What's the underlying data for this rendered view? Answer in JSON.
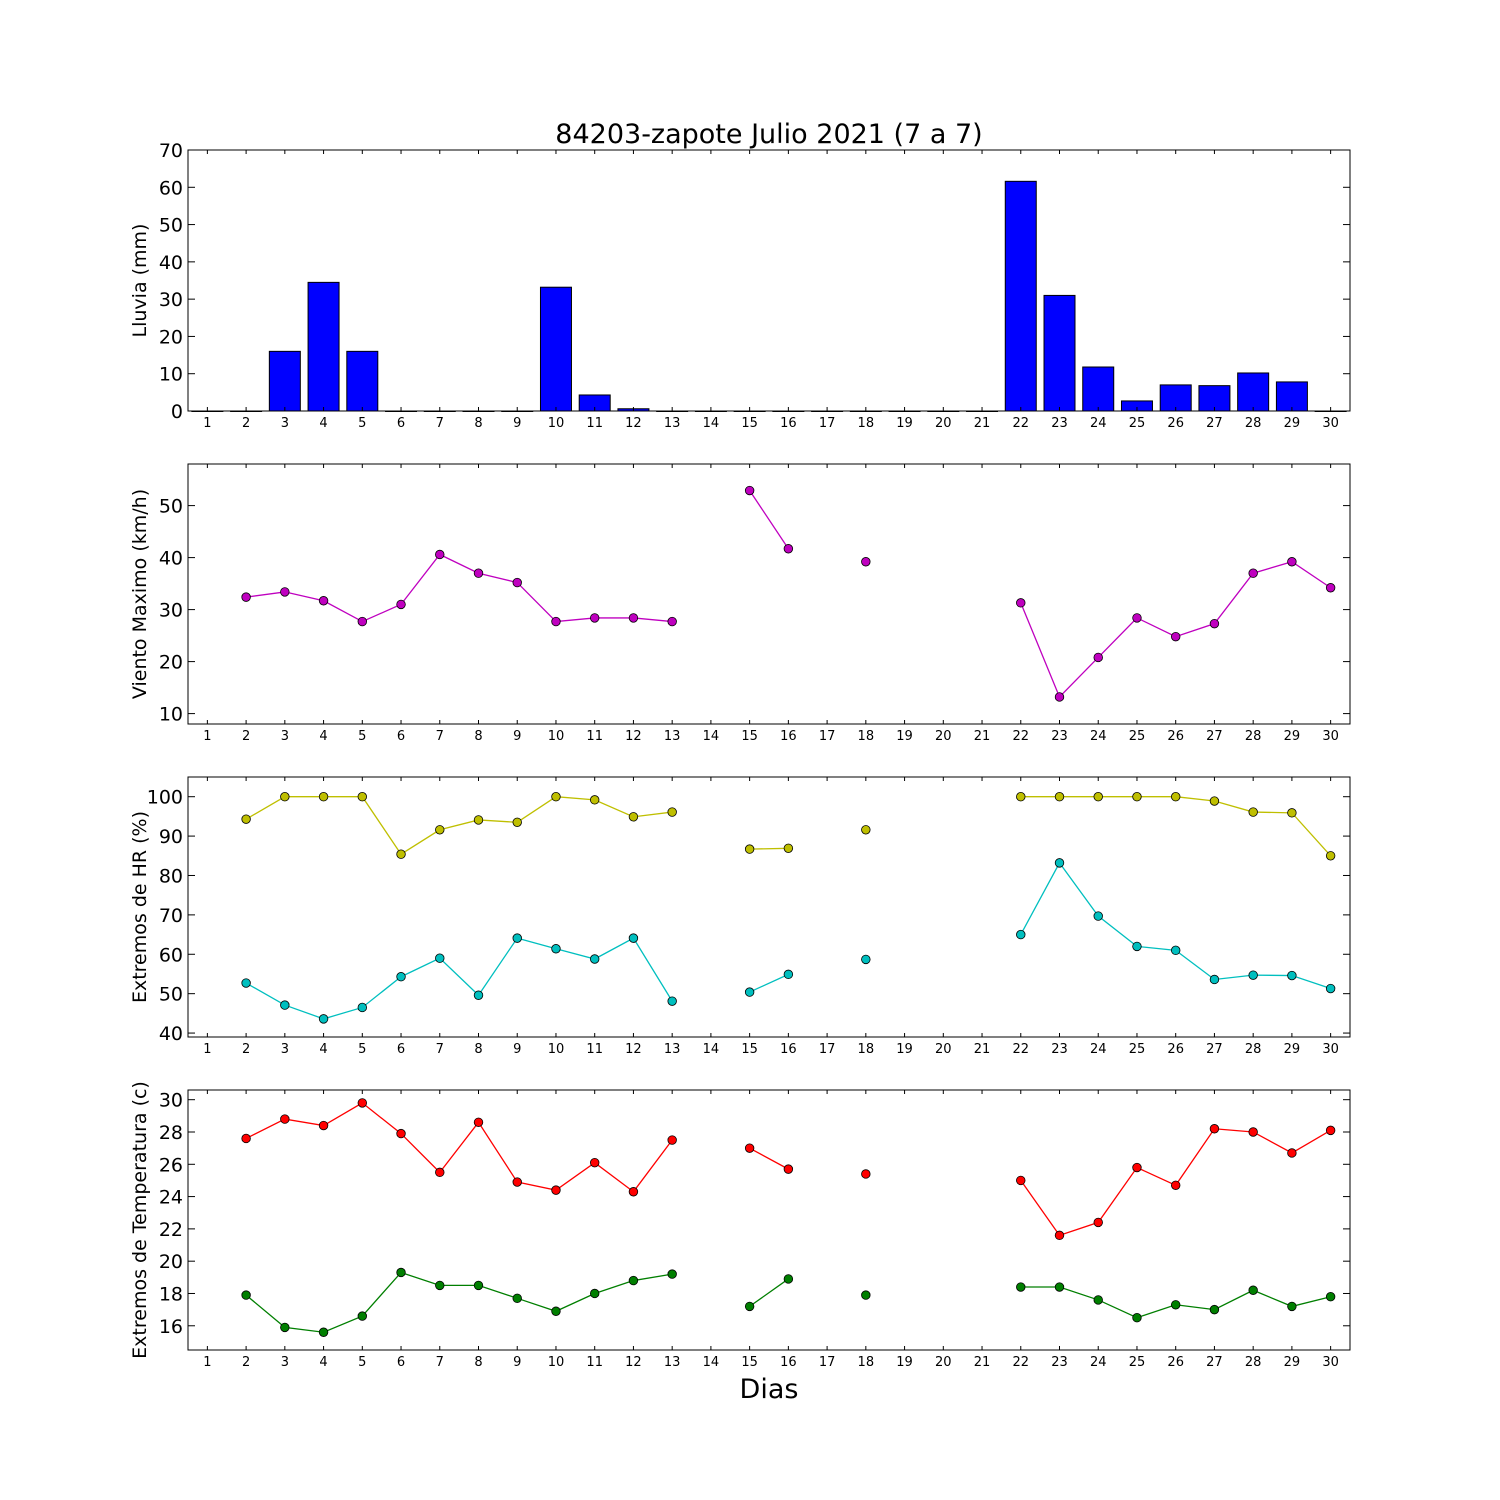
{
  "figure": {
    "title": "84203-zapote Julio 2021  (7 a 7)",
    "xlabel": "Dias"
  },
  "chart_data": [
    {
      "type": "bar",
      "ylabel": "Lluvia (mm)",
      "x": [
        1,
        2,
        3,
        4,
        5,
        6,
        7,
        8,
        9,
        10,
        11,
        12,
        13,
        14,
        15,
        16,
        17,
        18,
        19,
        20,
        21,
        22,
        23,
        24,
        25,
        26,
        27,
        28,
        29,
        30
      ],
      "xlim": [
        0.5,
        30.5
      ],
      "ylim": [
        0,
        70
      ],
      "yticks": [
        0,
        10,
        20,
        30,
        40,
        50,
        60,
        70
      ],
      "series": [
        {
          "color": "#0000ff",
          "values": [
            0,
            0,
            16,
            34.5,
            16,
            0,
            0,
            0,
            0,
            33.2,
            4.3,
            0.6,
            0,
            0,
            0,
            0,
            0,
            0,
            0,
            0,
            0,
            61.6,
            31,
            11.8,
            2.7,
            7,
            6.8,
            10.2,
            7.8,
            0
          ]
        }
      ],
      "grid": false
    },
    {
      "type": "line",
      "ylabel": "Viento Maximo (km/h)",
      "x": [
        1,
        2,
        3,
        4,
        5,
        6,
        7,
        8,
        9,
        10,
        11,
        12,
        13,
        14,
        15,
        16,
        17,
        18,
        19,
        20,
        21,
        22,
        23,
        24,
        25,
        26,
        27,
        28,
        29,
        30
      ],
      "xlim": [
        0.5,
        30.5
      ],
      "ylim": [
        8,
        58
      ],
      "yticks": [
        10,
        20,
        30,
        40,
        50
      ],
      "series": [
        {
          "color": "#bf00bf",
          "values": [
            null,
            32.4,
            33.4,
            31.7,
            27.7,
            31,
            40.6,
            37,
            35.2,
            27.7,
            28.4,
            28.4,
            27.7,
            null,
            52.9,
            41.7,
            null,
            39.2,
            null,
            null,
            null,
            31.3,
            13.2,
            20.8,
            28.4,
            24.8,
            27.3,
            37,
            39.2,
            34.2
          ]
        }
      ],
      "grid": false
    },
    {
      "type": "line",
      "ylabel": "Extremos de HR (%)",
      "x": [
        1,
        2,
        3,
        4,
        5,
        6,
        7,
        8,
        9,
        10,
        11,
        12,
        13,
        14,
        15,
        16,
        17,
        18,
        19,
        20,
        21,
        22,
        23,
        24,
        25,
        26,
        27,
        28,
        29,
        30
      ],
      "xlim": [
        0.5,
        30.5
      ],
      "ylim": [
        39,
        105
      ],
      "yticks": [
        40,
        50,
        60,
        70,
        80,
        90,
        100
      ],
      "series": [
        {
          "color": "#bfbf00",
          "values": [
            null,
            94.3,
            100,
            100,
            100,
            85.4,
            91.6,
            94.1,
            93.5,
            100,
            99.2,
            94.9,
            96.1,
            null,
            86.7,
            86.9,
            null,
            91.6,
            null,
            null,
            null,
            100,
            100,
            100,
            100,
            100,
            98.9,
            96.1,
            95.9,
            85
          ]
        },
        {
          "color": "#00bfbf",
          "values": [
            null,
            52.7,
            47.1,
            43.6,
            46.5,
            54.3,
            59,
            49.6,
            64.1,
            61.4,
            58.8,
            64.1,
            48.1,
            null,
            50.4,
            54.9,
            null,
            58.7,
            null,
            null,
            null,
            65,
            83.2,
            69.7,
            62,
            61,
            53.6,
            54.7,
            54.6,
            51.3
          ]
        }
      ],
      "grid": false
    },
    {
      "type": "line",
      "ylabel": "Extremos de Temperatura (c)",
      "x": [
        1,
        2,
        3,
        4,
        5,
        6,
        7,
        8,
        9,
        10,
        11,
        12,
        13,
        14,
        15,
        16,
        17,
        18,
        19,
        20,
        21,
        22,
        23,
        24,
        25,
        26,
        27,
        28,
        29,
        30
      ],
      "xlim": [
        0.5,
        30.5
      ],
      "ylim": [
        14.5,
        30.6
      ],
      "yticks": [
        16,
        18,
        20,
        22,
        24,
        26,
        28,
        30
      ],
      "series": [
        {
          "color": "#ff0000",
          "values": [
            null,
            27.6,
            28.8,
            28.4,
            29.8,
            27.9,
            25.5,
            28.6,
            24.9,
            24.4,
            26.1,
            24.3,
            27.5,
            null,
            27,
            25.7,
            null,
            25.4,
            null,
            null,
            null,
            25,
            21.6,
            22.4,
            25.8,
            24.7,
            28.2,
            28,
            26.7,
            28.1
          ]
        },
        {
          "color": "#007f00",
          "values": [
            null,
            17.9,
            15.9,
            15.6,
            16.6,
            19.3,
            18.5,
            18.5,
            17.7,
            16.9,
            18,
            18.8,
            19.2,
            null,
            17.2,
            18.9,
            null,
            17.9,
            null,
            null,
            null,
            18.4,
            18.4,
            17.6,
            16.5,
            17.3,
            17,
            18.2,
            17.2,
            17.8
          ]
        }
      ],
      "grid": false
    }
  ]
}
